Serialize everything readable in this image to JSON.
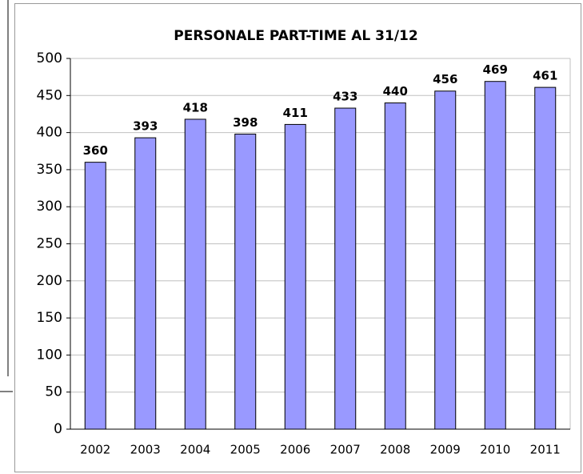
{
  "chart_data": {
    "type": "bar",
    "title": "PERSONALE PART-TIME AL 31/12",
    "categories": [
      "2002",
      "2003",
      "2004",
      "2005",
      "2006",
      "2007",
      "2008",
      "2009",
      "2010",
      "2011"
    ],
    "values": [
      360,
      393,
      418,
      398,
      411,
      433,
      440,
      456,
      469,
      461
    ],
    "color": "#9999ff",
    "ylim": [
      0,
      500
    ],
    "yticks": [
      0,
      50,
      100,
      150,
      200,
      250,
      300,
      350,
      400,
      450,
      500
    ],
    "grid": true
  }
}
